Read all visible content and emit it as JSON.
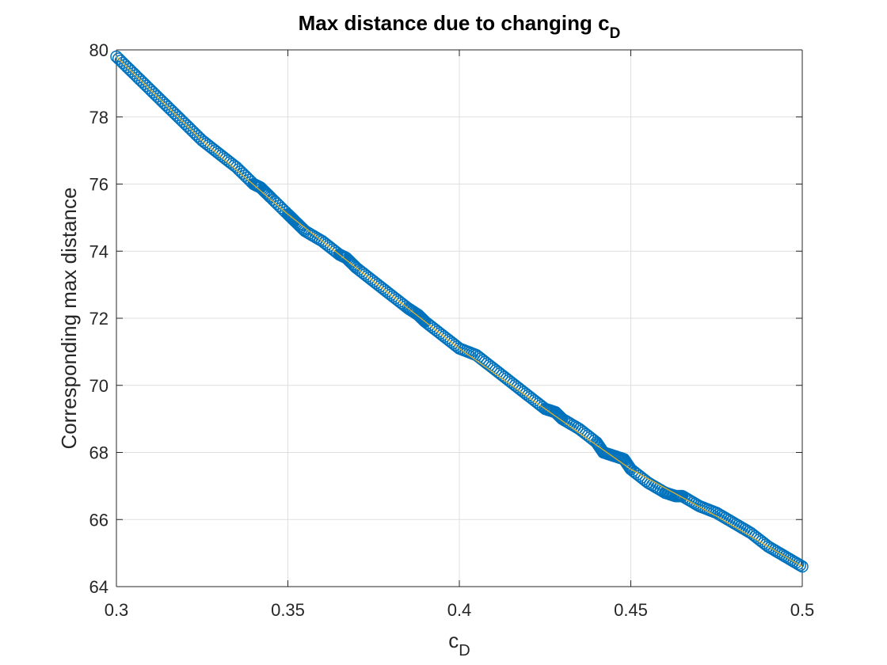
{
  "chart_data": {
    "type": "scatter",
    "title": "Max distance due to changing c",
    "title_subscript": "D",
    "xlabel": "c",
    "xlabel_subscript": "D",
    "ylabel": "Corresponding max distance",
    "xlim": [
      0.3,
      0.5
    ],
    "ylim": [
      64,
      80
    ],
    "xticks": [
      0.3,
      0.35,
      0.4,
      0.45,
      0.5
    ],
    "xtick_labels": [
      "0.3",
      "0.35",
      "0.4",
      "0.45",
      "0.5"
    ],
    "yticks": [
      64,
      66,
      68,
      70,
      72,
      74,
      76,
      78,
      80
    ],
    "ytick_labels": [
      "64",
      "66",
      "68",
      "70",
      "72",
      "74",
      "76",
      "78",
      "80"
    ],
    "grid": true,
    "colors": {
      "marker": "#0072BD",
      "fit_line": "#EDB120"
    },
    "series": [
      {
        "marker": "circle",
        "x": [
          0.3,
          0.305,
          0.31,
          0.315,
          0.32,
          0.325,
          0.33,
          0.335,
          0.34,
          0.342,
          0.345,
          0.35,
          0.352,
          0.355,
          0.36,
          0.365,
          0.367,
          0.37,
          0.375,
          0.38,
          0.385,
          0.388,
          0.39,
          0.395,
          0.4,
          0.405,
          0.41,
          0.415,
          0.42,
          0.425,
          0.428,
          0.43,
          0.435,
          0.44,
          0.442,
          0.445,
          0.448,
          0.45,
          0.455,
          0.46,
          0.463,
          0.465,
          0.47,
          0.475,
          0.48,
          0.485,
          0.49,
          0.495,
          0.5
        ],
        "y": [
          79.8,
          79.3,
          78.8,
          78.3,
          77.8,
          77.3,
          76.9,
          76.5,
          76.0,
          75.9,
          75.6,
          75.1,
          74.9,
          74.6,
          74.3,
          73.9,
          73.8,
          73.5,
          73.1,
          72.7,
          72.3,
          72.1,
          71.9,
          71.5,
          71.1,
          70.9,
          70.5,
          70.1,
          69.7,
          69.3,
          69.2,
          69.0,
          68.7,
          68.3,
          68.0,
          67.9,
          67.8,
          67.5,
          67.1,
          66.8,
          66.7,
          66.7,
          66.4,
          66.2,
          65.9,
          65.6,
          65.2,
          64.9,
          64.6
        ]
      },
      {
        "marker": "none",
        "x": [
          0.3,
          0.325,
          0.35,
          0.375,
          0.4,
          0.425,
          0.45,
          0.475,
          0.5
        ],
        "y": [
          79.8,
          77.3,
          75.1,
          73.1,
          71.1,
          69.3,
          67.5,
          66.1,
          64.6
        ]
      }
    ]
  }
}
